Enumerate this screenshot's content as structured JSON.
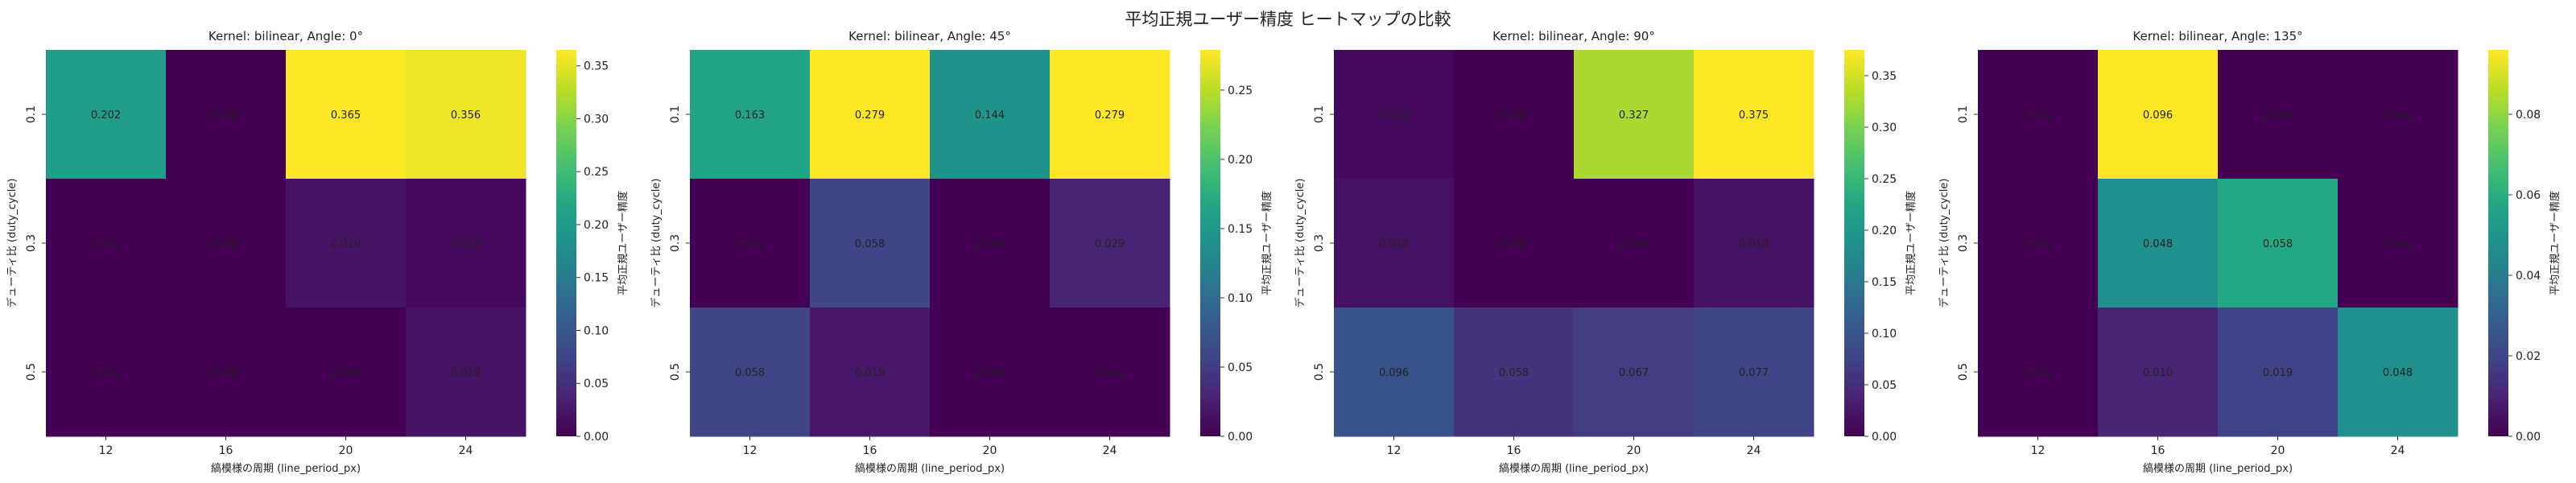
{
  "figure": {
    "title": "平均正規ユーザー精度 ヒートマップの比較"
  },
  "colormap": "viridis",
  "chart_data": [
    {
      "type": "heatmap",
      "title": "Kernel: bilinear, Angle: 0°",
      "xlabel": "縞模様の周期 (line_period_px)",
      "ylabel": "デューティ比 (duty_cycle)",
      "x_categories": [
        "12",
        "16",
        "20",
        "24"
      ],
      "y_categories": [
        "0.1",
        "0.3",
        "0.5"
      ],
      "values": [
        [
          0.202,
          0.0,
          0.365,
          0.356
        ],
        [
          0.0,
          0.0,
          0.019,
          0.01
        ],
        [
          0.0,
          0.0,
          0.0,
          0.019
        ]
      ],
      "value_labels": [
        [
          "0.202",
          "0.000",
          "0.365",
          "0.356"
        ],
        [
          "0.000",
          "0.000",
          "0.019",
          "0.010"
        ],
        [
          "0.000",
          "0.000",
          "0.000",
          "0.019"
        ]
      ],
      "colorbar": {
        "label": "平均正規ユーザー精度",
        "vmin": 0,
        "vmax": 0.365,
        "ticks": [
          0.0,
          0.05,
          0.1,
          0.15,
          0.2,
          0.25,
          0.3,
          0.35
        ],
        "tick_labels": [
          "0.00",
          "0.05",
          "0.10",
          "0.15",
          "0.20",
          "0.25",
          "0.30",
          "0.35"
        ]
      }
    },
    {
      "type": "heatmap",
      "title": "Kernel: bilinear, Angle: 45°",
      "xlabel": "縞模様の周期 (line_period_px)",
      "ylabel": "デューティ比 (duty_cycle)",
      "x_categories": [
        "12",
        "16",
        "20",
        "24"
      ],
      "y_categories": [
        "0.1",
        "0.3",
        "0.5"
      ],
      "values": [
        [
          0.163,
          0.279,
          0.144,
          0.279
        ],
        [
          0.0,
          0.058,
          0.0,
          0.029
        ],
        [
          0.058,
          0.019,
          0.0,
          0.0
        ]
      ],
      "value_labels": [
        [
          "0.163",
          "0.279",
          "0.144",
          "0.279"
        ],
        [
          "0.000",
          "0.058",
          "0.000",
          "0.029"
        ],
        [
          "0.058",
          "0.019",
          "0.000",
          "0.000"
        ]
      ],
      "colorbar": {
        "label": "平均正規ユーザー精度",
        "vmin": 0,
        "vmax": 0.279,
        "ticks": [
          0.0,
          0.05,
          0.1,
          0.15,
          0.2,
          0.25
        ],
        "tick_labels": [
          "0.00",
          "0.05",
          "0.10",
          "0.15",
          "0.20",
          "0.25"
        ]
      }
    },
    {
      "type": "heatmap",
      "title": "Kernel: bilinear, Angle: 90°",
      "xlabel": "縞模様の周期 (line_period_px)",
      "ylabel": "デューティ比 (duty_cycle)",
      "x_categories": [
        "12",
        "16",
        "20",
        "24"
      ],
      "y_categories": [
        "0.1",
        "0.3",
        "0.5"
      ],
      "values": [
        [
          0.01,
          0.0,
          0.327,
          0.375
        ],
        [
          0.019,
          0.0,
          0.0,
          0.019
        ],
        [
          0.096,
          0.058,
          0.067,
          0.077
        ]
      ],
      "value_labels": [
        [
          "0.010",
          "0.000",
          "0.327",
          "0.375"
        ],
        [
          "0.019",
          "0.000",
          "0.000",
          "0.019"
        ],
        [
          "0.096",
          "0.058",
          "0.067",
          "0.077"
        ]
      ],
      "colorbar": {
        "label": "平均正規ユーザー精度",
        "vmin": 0,
        "vmax": 0.375,
        "ticks": [
          0.0,
          0.05,
          0.1,
          0.15,
          0.2,
          0.25,
          0.3,
          0.35
        ],
        "tick_labels": [
          "0.00",
          "0.05",
          "0.10",
          "0.15",
          "0.20",
          "0.25",
          "0.30",
          "0.35"
        ]
      }
    },
    {
      "type": "heatmap",
      "title": "Kernel: bilinear, Angle: 135°",
      "xlabel": "縞模様の周期 (line_period_px)",
      "ylabel": "デューティ比 (duty_cycle)",
      "x_categories": [
        "12",
        "16",
        "20",
        "24"
      ],
      "y_categories": [
        "0.1",
        "0.3",
        "0.5"
      ],
      "values": [
        [
          0.0,
          0.096,
          0.0,
          0.0
        ],
        [
          0.0,
          0.048,
          0.058,
          0.0
        ],
        [
          0.0,
          0.01,
          0.019,
          0.048
        ]
      ],
      "value_labels": [
        [
          "0.000",
          "0.096",
          "0.000",
          "0.000"
        ],
        [
          "0.000",
          "0.048",
          "0.058",
          "0.000"
        ],
        [
          "0.000",
          "0.010",
          "0.019",
          "0.048"
        ]
      ],
      "colorbar": {
        "label": "平均正規ユーザー精度",
        "vmin": 0,
        "vmax": 0.096,
        "ticks": [
          0.0,
          0.02,
          0.04,
          0.06,
          0.08
        ],
        "tick_labels": [
          "0.00",
          "0.02",
          "0.04",
          "0.06",
          "0.08"
        ]
      }
    }
  ]
}
